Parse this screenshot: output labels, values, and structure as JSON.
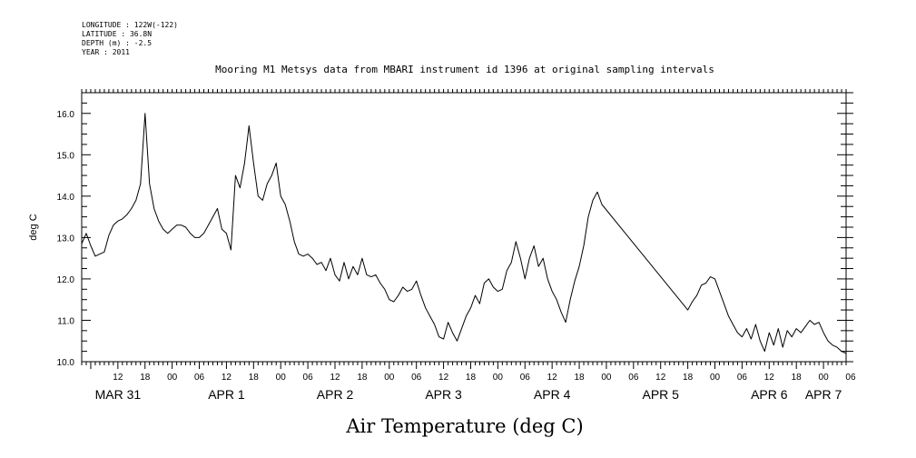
{
  "header": {
    "meta_lines": [
      "LONGITUDE : 122W(-122)",
      "LATITUDE : 36.8N",
      "DEPTH (m) : -2.5",
      "YEAR : 2011"
    ],
    "title": "Mooring M1 Metsys data from MBARI instrument id 1396 at original sampling intervals"
  },
  "chart_data": {
    "type": "line",
    "title": "Mooring M1 Metsys data from MBARI instrument id 1396 at original sampling intervals",
    "xlabel": "Air Temperature (deg C)",
    "ylabel": "deg C",
    "xlim": [
      "2011-03-31T04:00",
      "2011-04-07T05:00"
    ],
    "ylim": [
      10.0,
      16.5
    ],
    "y_ticks": [
      "10.0",
      "11.0",
      "12.0",
      "13.0",
      "14.0",
      "15.0",
      "16.0"
    ],
    "x_hour_ticks": [
      {
        "t": "2011-03-31T12:00",
        "label": "12"
      },
      {
        "t": "2011-03-31T18:00",
        "label": "18"
      },
      {
        "t": "2011-04-01T00:00",
        "label": "00"
      },
      {
        "t": "2011-04-01T06:00",
        "label": "06"
      },
      {
        "t": "2011-04-01T12:00",
        "label": "12"
      },
      {
        "t": "2011-04-01T18:00",
        "label": "18"
      },
      {
        "t": "2011-04-02T00:00",
        "label": "00"
      },
      {
        "t": "2011-04-02T06:00",
        "label": "06"
      },
      {
        "t": "2011-04-02T12:00",
        "label": "12"
      },
      {
        "t": "2011-04-02T18:00",
        "label": "18"
      },
      {
        "t": "2011-04-03T00:00",
        "label": "00"
      },
      {
        "t": "2011-04-03T06:00",
        "label": "06"
      },
      {
        "t": "2011-04-03T12:00",
        "label": "12"
      },
      {
        "t": "2011-04-03T18:00",
        "label": "18"
      },
      {
        "t": "2011-04-04T00:00",
        "label": "00"
      },
      {
        "t": "2011-04-04T06:00",
        "label": "06"
      },
      {
        "t": "2011-04-04T12:00",
        "label": "12"
      },
      {
        "t": "2011-04-04T18:00",
        "label": "18"
      },
      {
        "t": "2011-04-05T00:00",
        "label": "00"
      },
      {
        "t": "2011-04-05T06:00",
        "label": "06"
      },
      {
        "t": "2011-04-05T12:00",
        "label": "12"
      },
      {
        "t": "2011-04-05T18:00",
        "label": "18"
      },
      {
        "t": "2011-04-06T00:00",
        "label": "00"
      },
      {
        "t": "2011-04-06T06:00",
        "label": "06"
      },
      {
        "t": "2011-04-06T12:00",
        "label": "12"
      },
      {
        "t": "2011-04-06T18:00",
        "label": "18"
      },
      {
        "t": "2011-04-07T00:00",
        "label": "00"
      },
      {
        "t": "2011-04-07T06:00",
        "label": "06"
      }
    ],
    "x_day_labels": [
      {
        "t": "2011-03-31T12:00",
        "label": "MAR 31"
      },
      {
        "t": "2011-04-01T12:00",
        "label": "APR 1"
      },
      {
        "t": "2011-04-02T12:00",
        "label": "APR 2"
      },
      {
        "t": "2011-04-03T12:00",
        "label": "APR 3"
      },
      {
        "t": "2011-04-04T12:00",
        "label": "APR 4"
      },
      {
        "t": "2011-04-05T12:00",
        "label": "APR 5"
      },
      {
        "t": "2011-04-06T12:00",
        "label": "APR 6"
      },
      {
        "t": "2011-04-07T00:00",
        "label": "APR 7"
      }
    ],
    "grid": false,
    "series": [
      {
        "color": "#000000",
        "points": [
          [
            "2011-03-31T04:00",
            12.85
          ],
          [
            "2011-03-31T05:00",
            13.1
          ],
          [
            "2011-03-31T06:00",
            12.8
          ],
          [
            "2011-03-31T07:00",
            12.55
          ],
          [
            "2011-03-31T08:00",
            12.6
          ],
          [
            "2011-03-31T09:00",
            12.65
          ],
          [
            "2011-03-31T10:00",
            13.05
          ],
          [
            "2011-03-31T11:00",
            13.3
          ],
          [
            "2011-03-31T12:00",
            13.4
          ],
          [
            "2011-03-31T13:00",
            13.45
          ],
          [
            "2011-03-31T14:00",
            13.55
          ],
          [
            "2011-03-31T15:00",
            13.7
          ],
          [
            "2011-03-31T16:00",
            13.9
          ],
          [
            "2011-03-31T17:00",
            14.3
          ],
          [
            "2011-03-31T18:00",
            16.0
          ],
          [
            "2011-03-31T19:00",
            14.3
          ],
          [
            "2011-03-31T20:00",
            13.7
          ],
          [
            "2011-03-31T21:00",
            13.4
          ],
          [
            "2011-03-31T22:00",
            13.2
          ],
          [
            "2011-03-31T23:00",
            13.1
          ],
          [
            "2011-04-01T00:00",
            13.2
          ],
          [
            "2011-04-01T01:00",
            13.3
          ],
          [
            "2011-04-01T02:00",
            13.3
          ],
          [
            "2011-04-01T03:00",
            13.25
          ],
          [
            "2011-04-01T04:00",
            13.1
          ],
          [
            "2011-04-01T05:00",
            13.0
          ],
          [
            "2011-04-01T06:00",
            13.0
          ],
          [
            "2011-04-01T07:00",
            13.1
          ],
          [
            "2011-04-01T08:00",
            13.3
          ],
          [
            "2011-04-01T09:00",
            13.5
          ],
          [
            "2011-04-01T10:00",
            13.7
          ],
          [
            "2011-04-01T11:00",
            13.2
          ],
          [
            "2011-04-01T12:00",
            13.1
          ],
          [
            "2011-04-01T13:00",
            12.7
          ],
          [
            "2011-04-01T14:00",
            14.5
          ],
          [
            "2011-04-01T15:00",
            14.2
          ],
          [
            "2011-04-01T16:00",
            14.8
          ],
          [
            "2011-04-01T17:00",
            15.7
          ],
          [
            "2011-04-01T18:00",
            14.8
          ],
          [
            "2011-04-01T19:00",
            14.0
          ],
          [
            "2011-04-01T20:00",
            13.9
          ],
          [
            "2011-04-01T21:00",
            14.3
          ],
          [
            "2011-04-01T22:00",
            14.5
          ],
          [
            "2011-04-01T23:00",
            14.8
          ],
          [
            "2011-04-02T00:00",
            14.0
          ],
          [
            "2011-04-02T01:00",
            13.8
          ],
          [
            "2011-04-02T02:00",
            13.4
          ],
          [
            "2011-04-02T03:00",
            12.9
          ],
          [
            "2011-04-02T04:00",
            12.6
          ],
          [
            "2011-04-02T05:00",
            12.55
          ],
          [
            "2011-04-02T06:00",
            12.6
          ],
          [
            "2011-04-02T07:00",
            12.5
          ],
          [
            "2011-04-02T08:00",
            12.35
          ],
          [
            "2011-04-02T09:00",
            12.4
          ],
          [
            "2011-04-02T10:00",
            12.2
          ],
          [
            "2011-04-02T11:00",
            12.5
          ],
          [
            "2011-04-02T12:00",
            12.1
          ],
          [
            "2011-04-02T13:00",
            11.95
          ],
          [
            "2011-04-02T14:00",
            12.4
          ],
          [
            "2011-04-02T15:00",
            12.0
          ],
          [
            "2011-04-02T16:00",
            12.3
          ],
          [
            "2011-04-02T17:00",
            12.1
          ],
          [
            "2011-04-02T18:00",
            12.5
          ],
          [
            "2011-04-02T19:00",
            12.1
          ],
          [
            "2011-04-02T20:00",
            12.05
          ],
          [
            "2011-04-02T21:00",
            12.1
          ],
          [
            "2011-04-02T22:00",
            11.9
          ],
          [
            "2011-04-02T23:00",
            11.75
          ],
          [
            "2011-04-03T00:00",
            11.5
          ],
          [
            "2011-04-03T01:00",
            11.45
          ],
          [
            "2011-04-03T02:00",
            11.6
          ],
          [
            "2011-04-03T03:00",
            11.8
          ],
          [
            "2011-04-03T04:00",
            11.7
          ],
          [
            "2011-04-03T05:00",
            11.75
          ],
          [
            "2011-04-03T06:00",
            11.95
          ],
          [
            "2011-04-03T07:00",
            11.6
          ],
          [
            "2011-04-03T08:00",
            11.3
          ],
          [
            "2011-04-03T09:00",
            11.1
          ],
          [
            "2011-04-03T10:00",
            10.9
          ],
          [
            "2011-04-03T11:00",
            10.6
          ],
          [
            "2011-04-03T12:00",
            10.55
          ],
          [
            "2011-04-03T13:00",
            10.95
          ],
          [
            "2011-04-03T14:00",
            10.7
          ],
          [
            "2011-04-03T15:00",
            10.5
          ],
          [
            "2011-04-03T16:00",
            10.8
          ],
          [
            "2011-04-03T17:00",
            11.1
          ],
          [
            "2011-04-03T18:00",
            11.3
          ],
          [
            "2011-04-03T19:00",
            11.6
          ],
          [
            "2011-04-03T20:00",
            11.4
          ],
          [
            "2011-04-03T21:00",
            11.9
          ],
          [
            "2011-04-03T22:00",
            12.0
          ],
          [
            "2011-04-03T23:00",
            11.8
          ],
          [
            "2011-04-04T00:00",
            11.7
          ],
          [
            "2011-04-04T01:00",
            11.75
          ],
          [
            "2011-04-04T02:00",
            12.2
          ],
          [
            "2011-04-04T03:00",
            12.4
          ],
          [
            "2011-04-04T04:00",
            12.9
          ],
          [
            "2011-04-04T05:00",
            12.5
          ],
          [
            "2011-04-04T06:00",
            12.0
          ],
          [
            "2011-04-04T07:00",
            12.5
          ],
          [
            "2011-04-04T08:00",
            12.8
          ],
          [
            "2011-04-04T09:00",
            12.3
          ],
          [
            "2011-04-04T10:00",
            12.5
          ],
          [
            "2011-04-04T11:00",
            12.0
          ],
          [
            "2011-04-04T12:00",
            11.7
          ],
          [
            "2011-04-04T13:00",
            11.5
          ],
          [
            "2011-04-04T14:00",
            11.2
          ],
          [
            "2011-04-04T15:00",
            10.95
          ],
          [
            "2011-04-04T16:00",
            11.5
          ],
          [
            "2011-04-04T17:00",
            11.95
          ],
          [
            "2011-04-04T18:00",
            12.3
          ],
          [
            "2011-04-04T19:00",
            12.8
          ],
          [
            "2011-04-04T20:00",
            13.5
          ],
          [
            "2011-04-04T21:00",
            13.9
          ],
          [
            "2011-04-04T22:00",
            14.1
          ],
          [
            "2011-04-04T23:00",
            13.8
          ],
          [
            "2011-04-05T18:00",
            11.25
          ],
          [
            "2011-04-05T19:00",
            11.45
          ],
          [
            "2011-04-05T20:00",
            11.6
          ],
          [
            "2011-04-05T21:00",
            11.85
          ],
          [
            "2011-04-05T22:00",
            11.9
          ],
          [
            "2011-04-05T23:00",
            12.05
          ],
          [
            "2011-04-06T00:00",
            12.0
          ],
          [
            "2011-04-06T01:00",
            11.7
          ],
          [
            "2011-04-06T02:00",
            11.4
          ],
          [
            "2011-04-06T03:00",
            11.1
          ],
          [
            "2011-04-06T04:00",
            10.9
          ],
          [
            "2011-04-06T05:00",
            10.7
          ],
          [
            "2011-04-06T06:00",
            10.6
          ],
          [
            "2011-04-06T07:00",
            10.8
          ],
          [
            "2011-04-06T08:00",
            10.55
          ],
          [
            "2011-04-06T09:00",
            10.9
          ],
          [
            "2011-04-06T10:00",
            10.5
          ],
          [
            "2011-04-06T11:00",
            10.25
          ],
          [
            "2011-04-06T12:00",
            10.7
          ],
          [
            "2011-04-06T13:00",
            10.4
          ],
          [
            "2011-04-06T14:00",
            10.8
          ],
          [
            "2011-04-06T15:00",
            10.35
          ],
          [
            "2011-04-06T16:00",
            10.75
          ],
          [
            "2011-04-06T17:00",
            10.6
          ],
          [
            "2011-04-06T18:00",
            10.8
          ],
          [
            "2011-04-06T19:00",
            10.7
          ],
          [
            "2011-04-06T20:00",
            10.85
          ],
          [
            "2011-04-06T21:00",
            11.0
          ],
          [
            "2011-04-06T22:00",
            10.9
          ],
          [
            "2011-04-06T23:00",
            10.95
          ],
          [
            "2011-04-07T00:00",
            10.7
          ],
          [
            "2011-04-07T01:00",
            10.5
          ],
          [
            "2011-04-07T02:00",
            10.4
          ],
          [
            "2011-04-07T03:00",
            10.35
          ],
          [
            "2011-04-07T04:00",
            10.25
          ],
          [
            "2011-04-07T05:00",
            10.2
          ]
        ]
      }
    ]
  }
}
